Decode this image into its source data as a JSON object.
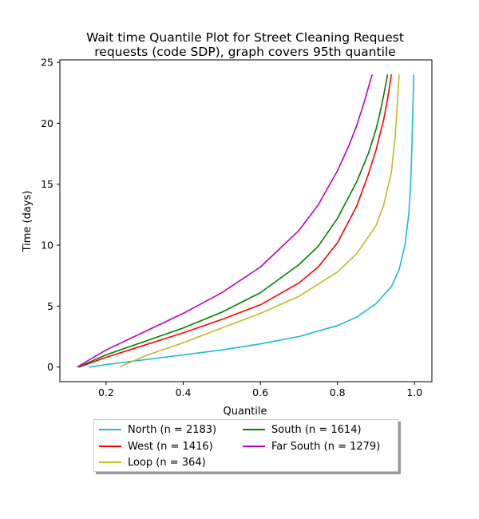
{
  "chart_data": {
    "type": "line",
    "title_line1": "Wait time Quantile Plot for Street Cleaning Request",
    "title_line2": "requests (code SDP), graph covers 95th quantile",
    "xlabel": "Quantile",
    "ylabel": "Time (days)",
    "xlim": [
      0.08,
      1.045
    ],
    "ylim": [
      -1.2,
      25.2
    ],
    "xticks": [
      0.2,
      0.4,
      0.6,
      0.8,
      1.0
    ],
    "xtick_labels": [
      "0.2",
      "0.4",
      "0.6",
      "0.8",
      "1.0"
    ],
    "yticks": [
      0,
      5,
      10,
      15,
      20,
      25
    ],
    "ytick_labels": [
      "0",
      "5",
      "10",
      "15",
      "20",
      "25"
    ],
    "grid": false,
    "legend_position": "below plot, center",
    "series": [
      {
        "name": "North (n = 2183)",
        "color": "#17becf",
        "x": [
          0.155,
          0.2,
          0.3,
          0.4,
          0.5,
          0.6,
          0.7,
          0.8,
          0.85,
          0.9,
          0.94,
          0.96,
          0.975,
          0.985,
          0.99,
          0.993,
          0.996,
          0.998
        ],
        "y": [
          0.0,
          0.2,
          0.6,
          1.0,
          1.4,
          1.9,
          2.5,
          3.4,
          4.1,
          5.2,
          6.6,
          8.0,
          10.0,
          12.5,
          15.0,
          18.0,
          21.5,
          24.0
        ]
      },
      {
        "name": "West (n = 1416)",
        "color": "#ff0000",
        "x": [
          0.13,
          0.2,
          0.3,
          0.4,
          0.5,
          0.6,
          0.7,
          0.75,
          0.8,
          0.85,
          0.88,
          0.9,
          0.92,
          0.93,
          0.94
        ],
        "y": [
          0.0,
          0.8,
          1.8,
          2.8,
          3.9,
          5.1,
          6.9,
          8.2,
          10.2,
          13.2,
          15.8,
          17.8,
          20.3,
          22.0,
          24.0
        ]
      },
      {
        "name": "Loop (n = 364)",
        "color": "#bcbd22",
        "x": [
          0.235,
          0.3,
          0.4,
          0.5,
          0.6,
          0.7,
          0.8,
          0.85,
          0.9,
          0.92,
          0.94,
          0.95,
          0.96
        ],
        "y": [
          0.0,
          0.9,
          2.0,
          3.2,
          4.4,
          5.8,
          7.8,
          9.3,
          11.6,
          13.3,
          16.0,
          19.0,
          24.0
        ]
      },
      {
        "name": "South (n = 1614)",
        "color": "#008000",
        "x": [
          0.128,
          0.2,
          0.3,
          0.4,
          0.5,
          0.6,
          0.7,
          0.75,
          0.8,
          0.85,
          0.88,
          0.9,
          0.91,
          0.92,
          0.93
        ],
        "y": [
          0.0,
          1.0,
          2.1,
          3.2,
          4.5,
          6.1,
          8.4,
          9.9,
          12.2,
          15.2,
          17.5,
          19.5,
          20.8,
          22.3,
          24.0
        ]
      },
      {
        "name": "Far South (n = 1279)",
        "color": "#bf00bf",
        "x": [
          0.125,
          0.2,
          0.3,
          0.4,
          0.5,
          0.6,
          0.7,
          0.75,
          0.8,
          0.83,
          0.85,
          0.87,
          0.88,
          0.89
        ],
        "y": [
          0.0,
          1.4,
          2.9,
          4.4,
          6.1,
          8.2,
          11.2,
          13.3,
          16.1,
          18.2,
          19.8,
          21.8,
          22.9,
          24.0
        ]
      }
    ]
  }
}
